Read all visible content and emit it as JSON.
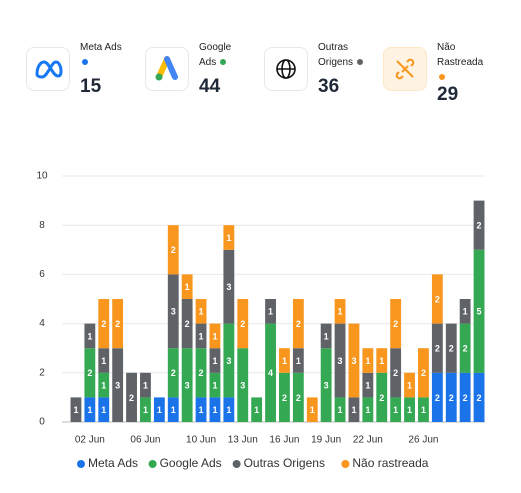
{
  "cards": [
    {
      "label": "Meta Ads",
      "value": "15",
      "color": "#1a73e8"
    },
    {
      "label": "Google Ads",
      "value": "44",
      "color": "#34a853"
    },
    {
      "label": "Outras Origens",
      "value": "36",
      "color": "#5f6368"
    },
    {
      "label": "Não Rastreada",
      "value": "29",
      "color": "#f9961e"
    }
  ],
  "chart_data": {
    "type": "stacked-bar",
    "categories": [
      null,
      "02 Jun",
      null,
      null,
      null,
      "06 Jun",
      null,
      null,
      null,
      "10 Jun",
      null,
      null,
      "13 Jun",
      null,
      null,
      "16 Jun",
      null,
      null,
      "19 Jun",
      null,
      null,
      "22 Jun",
      null,
      null,
      null,
      "26 Jun",
      null,
      null,
      null,
      null
    ],
    "series": [
      {
        "name": "Meta Ads",
        "color": "#1a73e8",
        "values": [
          0,
          1,
          1,
          0,
          0,
          0,
          1,
          1,
          0,
          1,
          1,
          1,
          0,
          0,
          0,
          0,
          0,
          0,
          0,
          0,
          0,
          0,
          0,
          0,
          0,
          0,
          2,
          2,
          2,
          2
        ]
      },
      {
        "name": "Google Ads",
        "color": "#34a853",
        "values": [
          0,
          2,
          1,
          0,
          0,
          1,
          0,
          2,
          3,
          2,
          1,
          3,
          3,
          1,
          4,
          2,
          2,
          0,
          3,
          1,
          0,
          1,
          2,
          1,
          1,
          1,
          0,
          0,
          2,
          5
        ]
      },
      {
        "name": "Outras Origens",
        "color": "#5f6368",
        "values": [
          1,
          1,
          1,
          3,
          2,
          1,
          0,
          3,
          2,
          1,
          1,
          3,
          0,
          0,
          1,
          0,
          1,
          0,
          1,
          3,
          1,
          1,
          0,
          2,
          0,
          0,
          2,
          2,
          1,
          2
        ]
      },
      {
        "name": "Não rastreada",
        "color": "#f9961e",
        "values": [
          0,
          0,
          2,
          2,
          0,
          0,
          0,
          2,
          1,
          1,
          1,
          1,
          2,
          0,
          0,
          1,
          2,
          1,
          0,
          1,
          3,
          1,
          1,
          2,
          1,
          2,
          2,
          0,
          0,
          0
        ]
      }
    ],
    "ylim": [
      0,
      10
    ],
    "yticks": [
      0,
      2,
      4,
      6,
      8,
      10
    ],
    "grid": true,
    "legend": "bottom"
  }
}
